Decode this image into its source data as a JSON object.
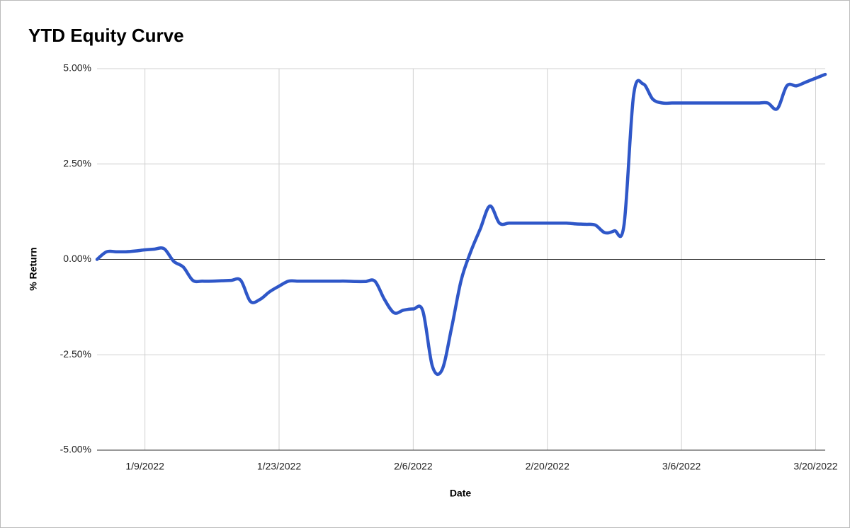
{
  "chart_data": {
    "type": "line",
    "title": "YTD Equity Curve",
    "x_label": "Date",
    "y_label": "% Return",
    "x": [
      "1/4/2022",
      "1/5/2022",
      "1/6/2022",
      "1/7/2022",
      "1/8/2022",
      "1/9/2022",
      "1/10/2022",
      "1/11/2022",
      "1/12/2022",
      "1/13/2022",
      "1/14/2022",
      "1/15/2022",
      "1/16/2022",
      "1/17/2022",
      "1/18/2022",
      "1/19/2022",
      "1/20/2022",
      "1/21/2022",
      "1/22/2022",
      "1/23/2022",
      "1/24/2022",
      "1/25/2022",
      "1/26/2022",
      "1/27/2022",
      "1/28/2022",
      "1/29/2022",
      "1/30/2022",
      "1/31/2022",
      "2/1/2022",
      "2/2/2022",
      "2/3/2022",
      "2/4/2022",
      "2/5/2022",
      "2/6/2022",
      "2/7/2022",
      "2/8/2022",
      "2/9/2022",
      "2/10/2022",
      "2/11/2022",
      "2/12/2022",
      "2/13/2022",
      "2/14/2022",
      "2/15/2022",
      "2/16/2022",
      "2/17/2022",
      "2/18/2022",
      "2/19/2022",
      "2/20/2022",
      "2/21/2022",
      "2/22/2022",
      "2/23/2022",
      "2/24/2022",
      "2/25/2022",
      "2/26/2022",
      "2/27/2022",
      "2/28/2022",
      "3/1/2022",
      "3/2/2022",
      "3/3/2022",
      "3/4/2022",
      "3/5/2022",
      "3/6/2022",
      "3/7/2022",
      "3/8/2022",
      "3/9/2022",
      "3/10/2022",
      "3/11/2022",
      "3/12/2022",
      "3/13/2022",
      "3/14/2022",
      "3/15/2022",
      "3/16/2022",
      "3/17/2022",
      "3/18/2022",
      "3/19/2022",
      "3/20/2022",
      "3/21/2022"
    ],
    "series": [
      {
        "name": "% Return",
        "color": "#2f57c8",
        "values": [
          0,
          0.2,
          0.2,
          0.2,
          0.22,
          0.25,
          0.27,
          0.28,
          -0.05,
          -0.2,
          -0.55,
          -0.57,
          -0.57,
          -0.56,
          -0.55,
          -0.55,
          -1.1,
          -1.05,
          -0.85,
          -0.7,
          -0.57,
          -0.57,
          -0.57,
          -0.57,
          -0.57,
          -0.57,
          -0.57,
          -0.58,
          -0.58,
          -0.57,
          -1.05,
          -1.4,
          -1.33,
          -1.3,
          -1.35,
          -2.8,
          -2.9,
          -1.8,
          -0.55,
          0.2,
          0.8,
          1.4,
          0.95,
          0.95,
          0.95,
          0.95,
          0.95,
          0.95,
          0.95,
          0.95,
          0.93,
          0.92,
          0.9,
          0.7,
          0.75,
          0.9,
          4.3,
          4.6,
          4.2,
          4.1,
          4.1,
          4.1,
          4.1,
          4.1,
          4.1,
          4.1,
          4.1,
          4.1,
          4.1,
          4.1,
          4.1,
          3.95,
          4.55,
          4.55,
          4.65,
          4.75,
          4.85
        ]
      }
    ],
    "xlim": [
      "1/4/2022",
      "3/21/2022"
    ],
    "xticks": [
      "1/9/2022",
      "1/23/2022",
      "2/6/2022",
      "2/20/2022",
      "3/6/2022",
      "3/20/2022"
    ],
    "ylim": [
      -5,
      5
    ],
    "yticks": [
      {
        "value": -5,
        "label": "-5.00%"
      },
      {
        "value": -2.5,
        "label": "-2.50%"
      },
      {
        "value": 0,
        "label": "0.00%"
      },
      {
        "value": 2.5,
        "label": "2.50%"
      },
      {
        "value": 5,
        "label": "5.00%"
      }
    ],
    "grid": true
  }
}
